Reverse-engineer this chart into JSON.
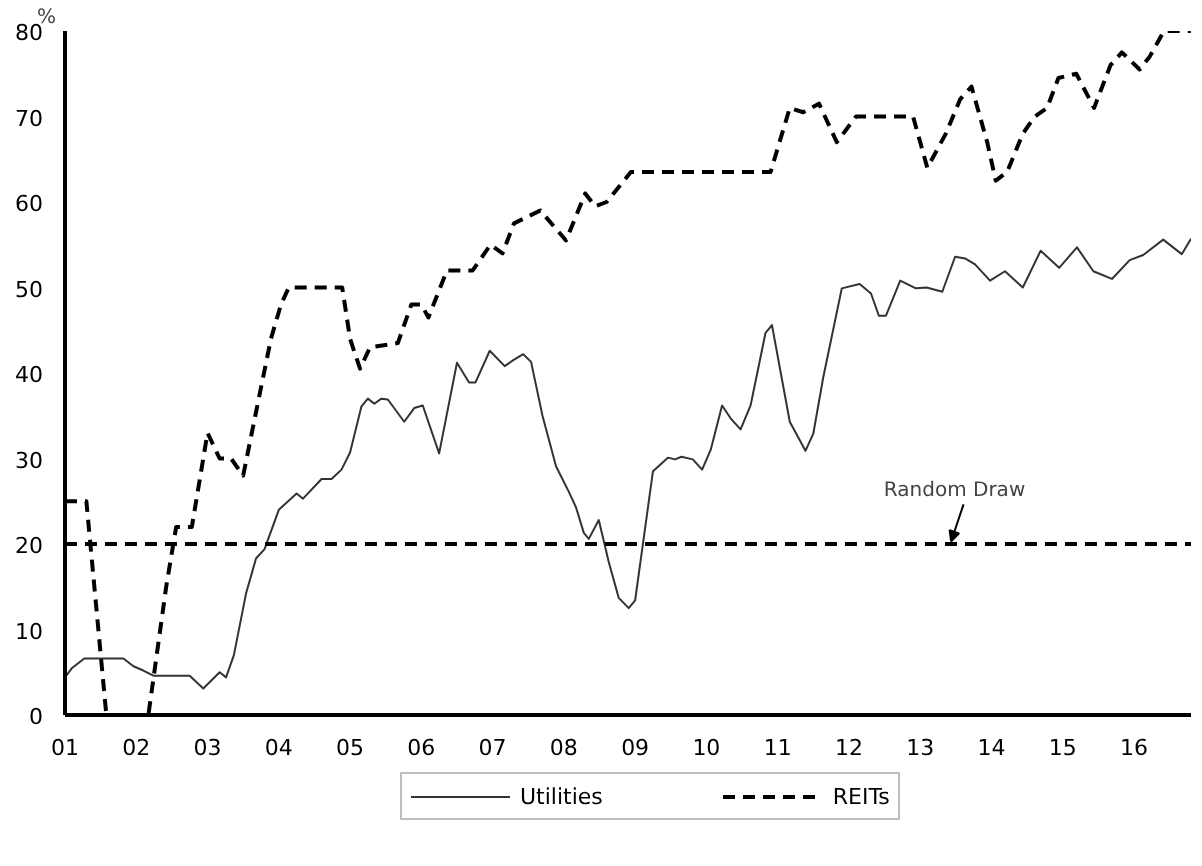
{
  "chart_data": {
    "type": "line",
    "ylabel": "%",
    "xlim": [
      2001,
      2016.8
    ],
    "ylim": [
      0,
      80
    ],
    "xticks": [
      {
        "value": 2001,
        "label": "01"
      },
      {
        "value": 2002,
        "label": "02"
      },
      {
        "value": 2003,
        "label": "03"
      },
      {
        "value": 2004,
        "label": "04"
      },
      {
        "value": 2005,
        "label": "05"
      },
      {
        "value": 2006,
        "label": "06"
      },
      {
        "value": 2007,
        "label": "07"
      },
      {
        "value": 2008,
        "label": "08"
      },
      {
        "value": 2009,
        "label": "09"
      },
      {
        "value": 2010,
        "label": "10"
      },
      {
        "value": 2011,
        "label": "11"
      },
      {
        "value": 2012,
        "label": "12"
      },
      {
        "value": 2013,
        "label": "13"
      },
      {
        "value": 2014,
        "label": "14"
      },
      {
        "value": 2015,
        "label": "15"
      },
      {
        "value": 2016,
        "label": "16"
      }
    ],
    "yticks": [
      0,
      10,
      20,
      30,
      40,
      50,
      60,
      70,
      80
    ],
    "grid": false,
    "legend": "bottom",
    "marker": "none",
    "ref_lines": [
      {
        "axis": "y",
        "value": 20,
        "label": "Random Draw",
        "color": "#000000",
        "line_style": "dashed"
      }
    ],
    "series": [
      {
        "name": "Utilities",
        "color": "#333333",
        "line_style": "solid",
        "x": [
          2001.0,
          2001.1,
          2001.27,
          2001.82,
          2001.96,
          2002.1,
          2002.24,
          2002.75,
          2002.94,
          2003.17,
          2003.26,
          2003.37,
          2003.54,
          2003.68,
          2003.8,
          2004.0,
          2004.25,
          2004.34,
          2004.6,
          2004.74,
          2004.88,
          2005.0,
          2005.16,
          2005.25,
          2005.34,
          2005.44,
          2005.53,
          2005.76,
          2005.9,
          2006.02,
          2006.25,
          2006.5,
          2006.67,
          2006.76,
          2006.96,
          2007.17,
          2007.29,
          2007.43,
          2007.54,
          2007.7,
          2007.89,
          2008.07,
          2008.17,
          2008.28,
          2008.35,
          2008.49,
          2008.63,
          2008.77,
          2008.91,
          2009.0,
          2009.25,
          2009.46,
          2009.56,
          2009.65,
          2009.81,
          2009.94,
          2010.06,
          2010.22,
          2010.34,
          2010.48,
          2010.62,
          2010.83,
          2010.92,
          2011.17,
          2011.39,
          2011.5,
          2011.64,
          2011.9,
          2012.15,
          2012.31,
          2012.42,
          2012.52,
          2012.72,
          2012.94,
          2013.09,
          2013.31,
          2013.49,
          2013.63,
          2013.77,
          2013.98,
          2014.19,
          2014.44,
          2014.69,
          2014.95,
          2015.2,
          2015.43,
          2015.69,
          2015.94,
          2016.13,
          2016.41,
          2016.67,
          2016.8
        ],
        "values": [
          4.4,
          5.5,
          6.6,
          6.6,
          5.7,
          5.2,
          4.6,
          4.6,
          3.1,
          5.0,
          4.4,
          7.0,
          14.2,
          18.3,
          19.4,
          24.0,
          25.9,
          25.3,
          27.6,
          27.6,
          28.7,
          30.7,
          36.1,
          37.0,
          36.4,
          37.0,
          36.9,
          34.3,
          35.9,
          36.2,
          30.6,
          41.2,
          38.9,
          38.9,
          42.6,
          40.8,
          41.5,
          42.2,
          41.3,
          35.0,
          29.1,
          26.1,
          24.3,
          21.3,
          20.6,
          22.8,
          17.9,
          13.7,
          12.5,
          13.4,
          28.5,
          30.1,
          29.9,
          30.2,
          29.9,
          28.7,
          31.0,
          36.2,
          34.7,
          33.4,
          36.2,
          44.7,
          45.6,
          34.3,
          30.9,
          32.9,
          39.5,
          49.9,
          50.4,
          49.3,
          46.7,
          46.7,
          50.8,
          49.9,
          50.0,
          49.5,
          53.6,
          53.4,
          52.7,
          50.8,
          51.9,
          50.0,
          54.3,
          52.3,
          54.7,
          51.9,
          51.0,
          53.2,
          53.8,
          55.6,
          53.9,
          55.7
        ]
      },
      {
        "name": "REITs",
        "color": "#000000",
        "line_style": "dashed",
        "x": [
          2001.0,
          2001.3,
          2001.58,
          2002.17,
          2002.42,
          2002.56,
          2002.78,
          2003.0,
          2003.17,
          2003.33,
          2003.5,
          2003.67,
          2003.89,
          2004.03,
          2004.14,
          2004.89,
          2005.0,
          2005.14,
          2005.28,
          2005.67,
          2005.86,
          2006.0,
          2006.1,
          2006.36,
          2006.72,
          2006.97,
          2007.14,
          2007.3,
          2007.67,
          2008.03,
          2008.3,
          2008.44,
          2008.6,
          2008.94,
          2010.9,
          2011.17,
          2011.36,
          2011.58,
          2011.83,
          2012.1,
          2012.9,
          2013.1,
          2013.36,
          2013.56,
          2013.72,
          2013.94,
          2014.06,
          2014.22,
          2014.44,
          2014.61,
          2014.78,
          2014.94,
          2015.19,
          2015.44,
          2015.67,
          2015.83,
          2016.08,
          2016.22,
          2016.42,
          2016.8
        ],
        "values": [
          25,
          25,
          0,
          0,
          15,
          22,
          22,
          33,
          30,
          30,
          28,
          35,
          44,
          48,
          50,
          50,
          44,
          40.5,
          43,
          43.5,
          48,
          48,
          46.5,
          52,
          52,
          55,
          54,
          57.5,
          59,
          55.5,
          61,
          59.5,
          60,
          63.5,
          63.5,
          71,
          70.5,
          71.5,
          67,
          70,
          70,
          64,
          68,
          72,
          73.5,
          67,
          62.5,
          63.5,
          68,
          70,
          71,
          74.5,
          75,
          71,
          76,
          77.5,
          75.5,
          77,
          80,
          80
        ]
      }
    ]
  }
}
